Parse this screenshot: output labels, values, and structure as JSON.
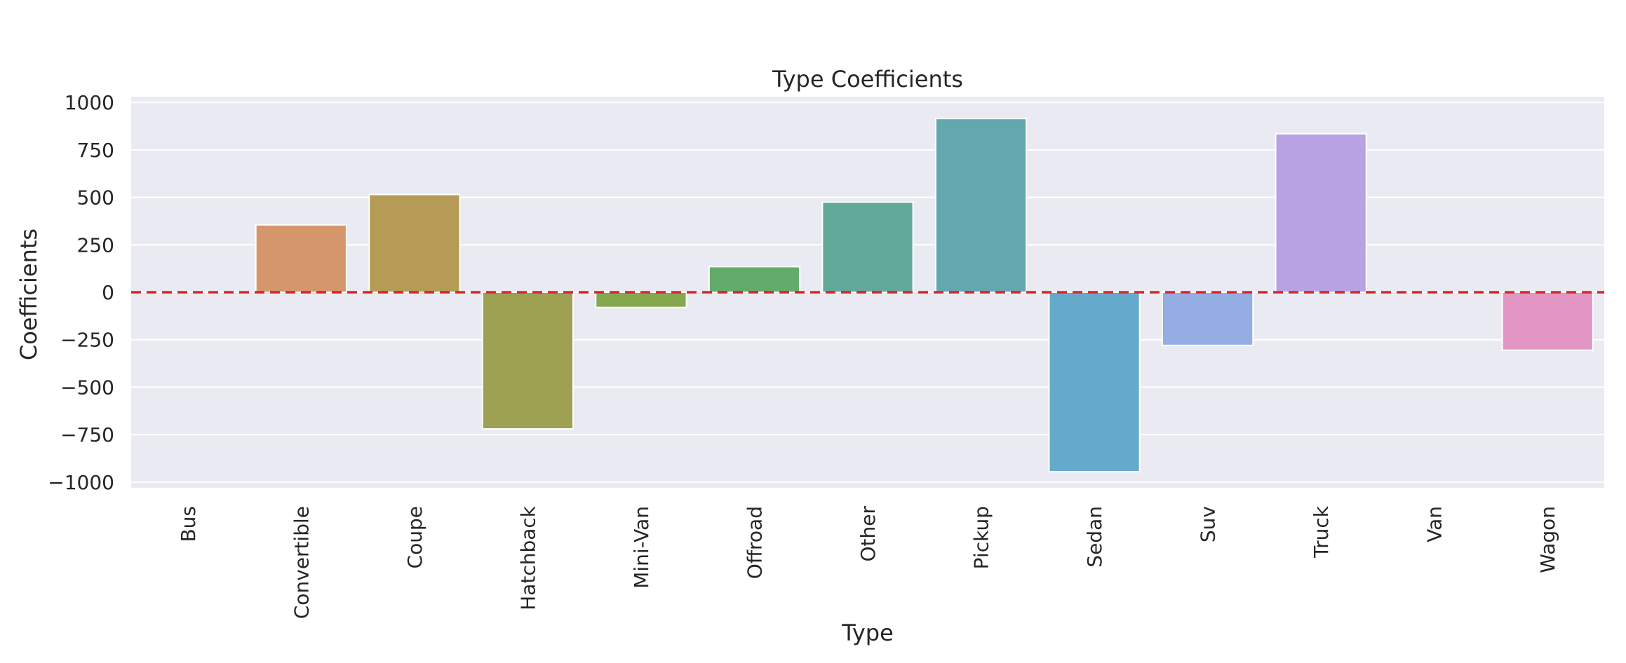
{
  "chart_data": {
    "type": "bar",
    "title": "Type Coefficients",
    "xlabel": "Type",
    "ylabel": "Coefficients",
    "categories": [
      "Bus",
      "Convertible",
      "Coupe",
      "Hatchback",
      "Mini-Van",
      "Offroad",
      "Other",
      "Pickup",
      "Sedan",
      "Suv",
      "Truck",
      "Van",
      "Wagon"
    ],
    "values": [
      0,
      355,
      515,
      -720,
      -80,
      135,
      475,
      915,
      -945,
      -280,
      835,
      0,
      -305
    ],
    "colors": [
      "#c48f9b",
      "#d6966b",
      "#b69b56",
      "#9ea052",
      "#85a84f",
      "#63ab6a",
      "#62a99a",
      "#62a8ae",
      "#66aacb",
      "#94aee4",
      "#b8a2e3",
      "#d89bd8",
      "#e196c4"
    ],
    "yticks": [
      1000,
      750,
      500,
      250,
      0,
      -250,
      -500,
      -750,
      -1000
    ],
    "ytick_labels": [
      "1000",
      "750",
      "500",
      "250",
      "0",
      "−250",
      "−500",
      "−750",
      "−1000"
    ],
    "ylim": [
      -1030,
      1030
    ],
    "reference_line": {
      "y": 0,
      "color": "#d62728",
      "style": "dashed"
    },
    "grid": true,
    "background": "#eaeaf2"
  }
}
